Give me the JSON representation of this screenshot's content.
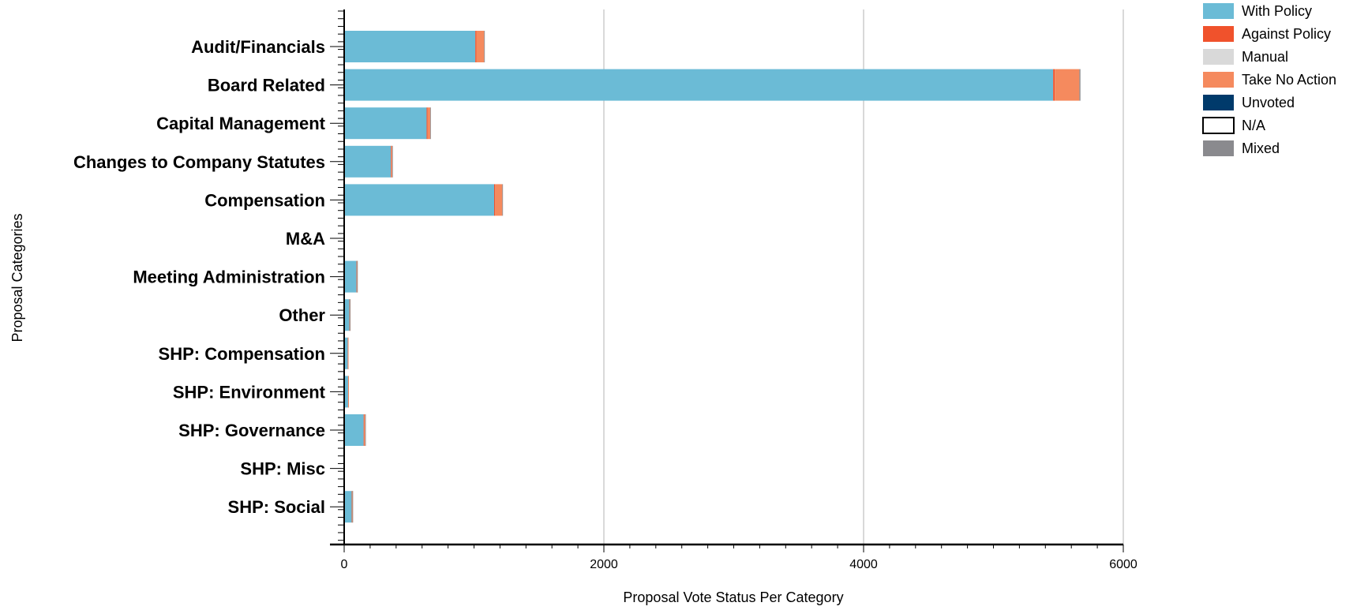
{
  "chart_data": {
    "type": "bar",
    "orientation": "horizontal",
    "stacked": true,
    "xlabel": "Proposal Vote Status Per Category",
    "ylabel": "Proposal Categories",
    "xlim": [
      0,
      6000
    ],
    "xticks": [
      0,
      2000,
      4000,
      6000
    ],
    "grid": "vertical",
    "legend_position": "top-right",
    "categories": [
      "Audit/Financials",
      "Board Related",
      "Capital Management",
      "Changes to Company Statutes",
      "Compensation",
      "M&A",
      "Meeting Administration",
      "Other",
      "SHP: Compensation",
      "SHP: Environment",
      "SHP: Governance",
      "SHP: Misc",
      "SHP: Social"
    ],
    "series": [
      {
        "name": "With Policy",
        "color": "#6bbbd6",
        "values": [
          1010,
          5460,
          635,
          360,
          1155,
          5,
          95,
          40,
          28,
          30,
          150,
          0,
          58
        ]
      },
      {
        "name": "Against Policy",
        "color": "#f0522c",
        "values": [
          8,
          12,
          8,
          4,
          8,
          0,
          2,
          1,
          1,
          1,
          4,
          0,
          2
        ]
      },
      {
        "name": "Manual",
        "color": "#d9d9d9",
        "values": [
          0,
          0,
          0,
          0,
          0,
          0,
          0,
          0,
          0,
          0,
          0,
          0,
          0
        ]
      },
      {
        "name": "Take No Action",
        "color": "#f58a5e",
        "values": [
          60,
          190,
          20,
          6,
          55,
          0,
          3,
          3,
          2,
          2,
          8,
          0,
          4
        ]
      },
      {
        "name": "Unvoted",
        "color": "#003a6b",
        "values": [
          0,
          0,
          0,
          0,
          0,
          0,
          0,
          0,
          0,
          0,
          0,
          0,
          0
        ]
      },
      {
        "name": "N/A",
        "color": "#ffffff",
        "values": [
          0,
          0,
          0,
          0,
          0,
          0,
          0,
          0,
          0,
          0,
          0,
          0,
          0
        ]
      },
      {
        "name": "Mixed",
        "color": "#8a8a8e",
        "values": [
          5,
          8,
          2,
          1,
          3,
          0,
          1,
          1,
          0,
          0,
          2,
          0,
          1
        ]
      }
    ]
  }
}
